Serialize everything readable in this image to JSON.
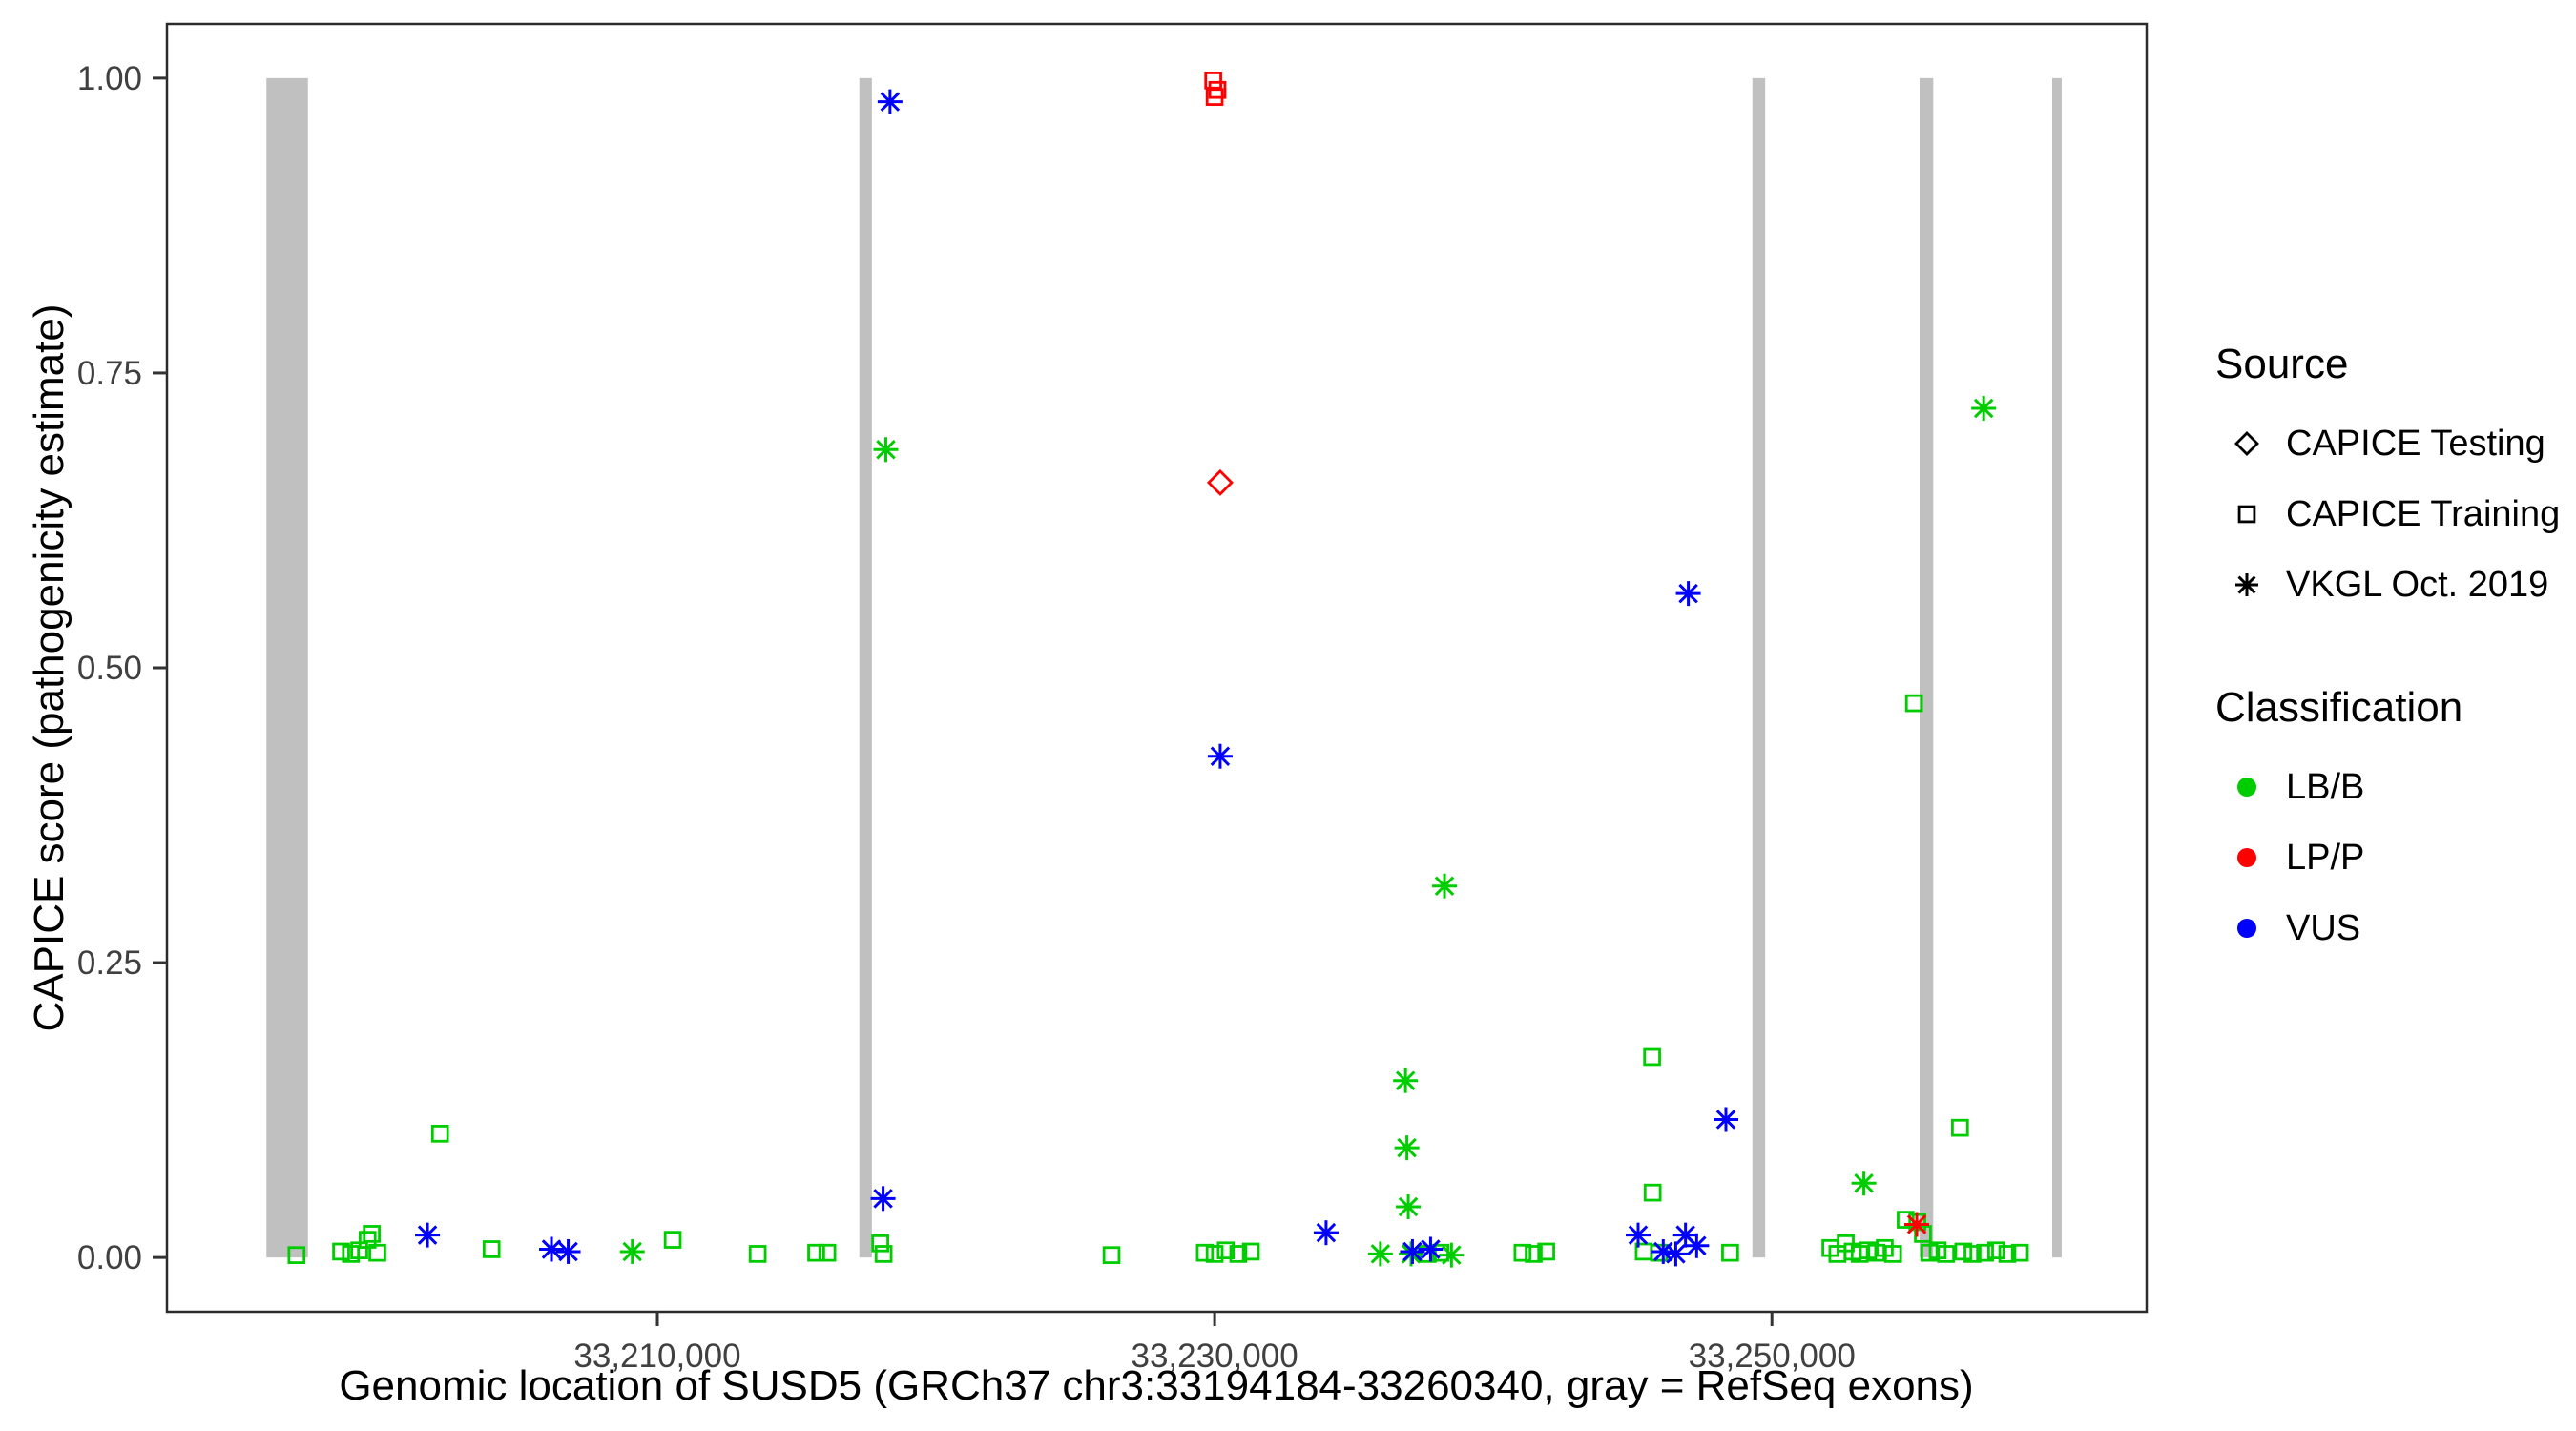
{
  "figure": {
    "background": "#FFFFFF",
    "panel_border_color": "#2b2b2b",
    "exon_color": "#C0C0C0",
    "tick_color": "#333333",
    "tick_text_color": "#404040",
    "axis_text_color": "#000000"
  },
  "chart_data": {
    "type": "scatter",
    "title": "",
    "xlabel": "Genomic location of SUSD5 (GRCh37 chr3:33194184-33260340, gray = RefSeq exons)",
    "ylabel": "CAPICE score (pathogenicity estimate)",
    "xlim": [
      33192400,
      33263450
    ],
    "ylim": [
      -0.046,
      1.046
    ],
    "grid": false,
    "x_ticks": [
      {
        "value": 33210000,
        "label": "33,210,000"
      },
      {
        "value": 33230000,
        "label": "33,230,000"
      },
      {
        "value": 33250000,
        "label": "33,250,000"
      }
    ],
    "y_ticks": [
      {
        "value": 0.0,
        "label": "0.00"
      },
      {
        "value": 0.25,
        "label": "0.25"
      },
      {
        "value": 0.5,
        "label": "0.50"
      },
      {
        "value": 0.75,
        "label": "0.75"
      },
      {
        "value": 1.0,
        "label": "1.00"
      }
    ],
    "exons": [
      [
        33195970,
        33197460
      ],
      [
        33217250,
        33217700
      ],
      [
        33249300,
        33249760
      ],
      [
        33255300,
        33255790
      ],
      [
        33260060,
        33260400
      ]
    ],
    "legend": {
      "source": {
        "title": "Source",
        "items": [
          {
            "label": "CAPICE Testing",
            "marker": "diamond"
          },
          {
            "label": "CAPICE Training",
            "marker": "square"
          },
          {
            "label": "VKGL Oct. 2019",
            "marker": "asterisk"
          }
        ]
      },
      "classification": {
        "title": "Classification",
        "items": [
          {
            "label": "LB/B",
            "color": "#00CD00"
          },
          {
            "label": "LP/P",
            "color": "#FF0000"
          },
          {
            "label": "VUS",
            "color": "#0000FF"
          }
        ]
      }
    },
    "series": [
      {
        "name": "CAPICE Training / LB/B",
        "source": "CAPICE Training",
        "classification": "LB/B",
        "marker": "square",
        "color": "#00CD00",
        "points": [
          [
            33197050,
            0.002
          ],
          [
            33198650,
            0.005
          ],
          [
            33199000,
            0.003
          ],
          [
            33199300,
            0.006
          ],
          [
            33199600,
            0.015
          ],
          [
            33199750,
            0.02
          ],
          [
            33199950,
            0.004
          ],
          [
            33202200,
            0.105
          ],
          [
            33204050,
            0.007
          ],
          [
            33210550,
            0.015
          ],
          [
            33213600,
            0.003
          ],
          [
            33215700,
            0.004
          ],
          [
            33216100,
            0.004
          ],
          [
            33218000,
            0.012
          ],
          [
            33218120,
            0.003
          ],
          [
            33226300,
            0.002
          ],
          [
            33229650,
            0.004
          ],
          [
            33230000,
            0.003
          ],
          [
            33230400,
            0.006
          ],
          [
            33230850,
            0.003
          ],
          [
            33231300,
            0.005
          ],
          [
            33237650,
            0.003
          ],
          [
            33238100,
            0.004
          ],
          [
            33241050,
            0.004
          ],
          [
            33241450,
            0.003
          ],
          [
            33241900,
            0.005
          ],
          [
            33245400,
            0.005
          ],
          [
            33245700,
            0.17
          ],
          [
            33245720,
            0.055
          ],
          [
            33245950,
            0.004
          ],
          [
            33248500,
            0.004
          ],
          [
            33252100,
            0.008
          ],
          [
            33252350,
            0.003
          ],
          [
            33252650,
            0.012
          ],
          [
            33252900,
            0.005
          ],
          [
            33253150,
            0.003
          ],
          [
            33253450,
            0.006
          ],
          [
            33253750,
            0.004
          ],
          [
            33254050,
            0.008
          ],
          [
            33254350,
            0.003
          ],
          [
            33254800,
            0.032
          ],
          [
            33255100,
            0.47
          ],
          [
            33255220,
            0.03
          ],
          [
            33255420,
            0.02
          ],
          [
            33255650,
            0.004
          ],
          [
            33255950,
            0.006
          ],
          [
            33256250,
            0.003
          ],
          [
            33256750,
            0.11
          ],
          [
            33256870,
            0.005
          ],
          [
            33257200,
            0.003
          ],
          [
            33257650,
            0.004
          ],
          [
            33258050,
            0.006
          ],
          [
            33258450,
            0.003
          ],
          [
            33258900,
            0.004
          ]
        ]
      },
      {
        "name": "CAPICE Training / LP/P",
        "source": "CAPICE Training",
        "classification": "LP/P",
        "marker": "square",
        "color": "#FF0000",
        "points": [
          [
            33229950,
            0.998
          ],
          [
            33230100,
            0.99
          ],
          [
            33230000,
            0.984
          ]
        ]
      },
      {
        "name": "CAPICE Testing / LP/P",
        "source": "CAPICE Testing",
        "classification": "LP/P",
        "marker": "diamond",
        "color": "#FF0000",
        "points": [
          [
            33230200,
            0.657
          ]
        ]
      },
      {
        "name": "VKGL Oct. 2019 / LB/B",
        "source": "VKGL Oct. 2019",
        "classification": "LB/B",
        "marker": "asterisk",
        "color": "#00CD00",
        "points": [
          [
            33209100,
            0.005
          ],
          [
            33218200,
            0.685
          ],
          [
            33235950,
            0.003
          ],
          [
            33236850,
            0.15
          ],
          [
            33236900,
            0.093
          ],
          [
            33236950,
            0.043
          ],
          [
            33237050,
            0.003
          ],
          [
            33238250,
            0.315
          ],
          [
            33238500,
            0.002
          ],
          [
            33253300,
            0.063
          ],
          [
            33257600,
            0.72
          ]
        ]
      },
      {
        "name": "VKGL Oct. 2019 / VUS",
        "source": "VKGL Oct. 2019",
        "classification": "VUS",
        "marker": "asterisk",
        "color": "#0000FF",
        "points": [
          [
            33201750,
            0.019
          ],
          [
            33206200,
            0.007
          ],
          [
            33206800,
            0.005
          ],
          [
            33218100,
            0.05
          ],
          [
            33218350,
            0.98
          ],
          [
            33230200,
            0.425
          ],
          [
            33234000,
            0.021
          ],
          [
            33237100,
            0.005
          ],
          [
            33237750,
            0.007
          ],
          [
            33245200,
            0.019
          ],
          [
            33246100,
            0.005
          ],
          [
            33246550,
            0.003
          ],
          [
            33246900,
            0.019
          ],
          [
            33247000,
            0.563
          ],
          [
            33247300,
            0.01
          ],
          [
            33248350,
            0.117
          ]
        ]
      },
      {
        "name": "VKGL Oct. 2019 / LP/P",
        "source": "VKGL Oct. 2019",
        "classification": "LP/P",
        "marker": "asterisk",
        "color": "#FF0000",
        "points": [
          [
            33255200,
            0.028
          ]
        ]
      }
    ]
  }
}
